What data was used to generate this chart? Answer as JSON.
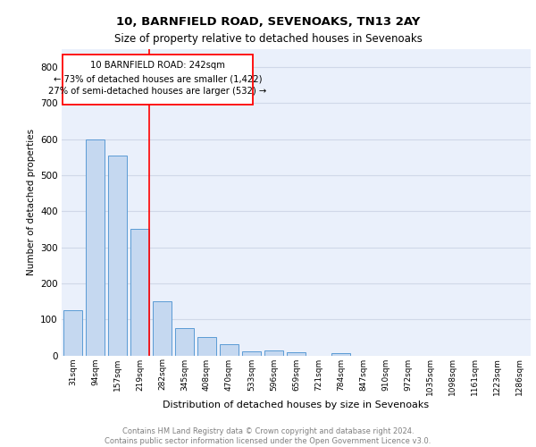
{
  "title1": "10, BARNFIELD ROAD, SEVENOAKS, TN13 2AY",
  "title2": "Size of property relative to detached houses in Sevenoaks",
  "xlabel": "Distribution of detached houses by size in Sevenoaks",
  "ylabel": "Number of detached properties",
  "footnote": "Contains HM Land Registry data © Crown copyright and database right 2024.\nContains public sector information licensed under the Open Government Licence v3.0.",
  "bar_labels": [
    "31sqm",
    "94sqm",
    "157sqm",
    "219sqm",
    "282sqm",
    "345sqm",
    "408sqm",
    "470sqm",
    "533sqm",
    "596sqm",
    "659sqm",
    "721sqm",
    "784sqm",
    "847sqm",
    "910sqm",
    "972sqm",
    "1035sqm",
    "1098sqm",
    "1161sqm",
    "1223sqm",
    "1286sqm"
  ],
  "bar_values": [
    125,
    600,
    555,
    350,
    150,
    75,
    52,
    32,
    12,
    13,
    9,
    0,
    7,
    0,
    0,
    0,
    0,
    0,
    0,
    0,
    0
  ],
  "bar_color": "#c5d8f0",
  "bar_edge_color": "#5b9bd5",
  "property_line_label": "10 BARNFIELD ROAD: 242sqm",
  "annotation_line1": "← 73% of detached houses are smaller (1,422)",
  "annotation_line2": "27% of semi-detached houses are larger (532) →",
  "ylim": [
    0,
    850
  ],
  "yticks": [
    0,
    100,
    200,
    300,
    400,
    500,
    600,
    700,
    800
  ],
  "grid_color": "#d0d8e8",
  "background_color": "#eaf0fb"
}
